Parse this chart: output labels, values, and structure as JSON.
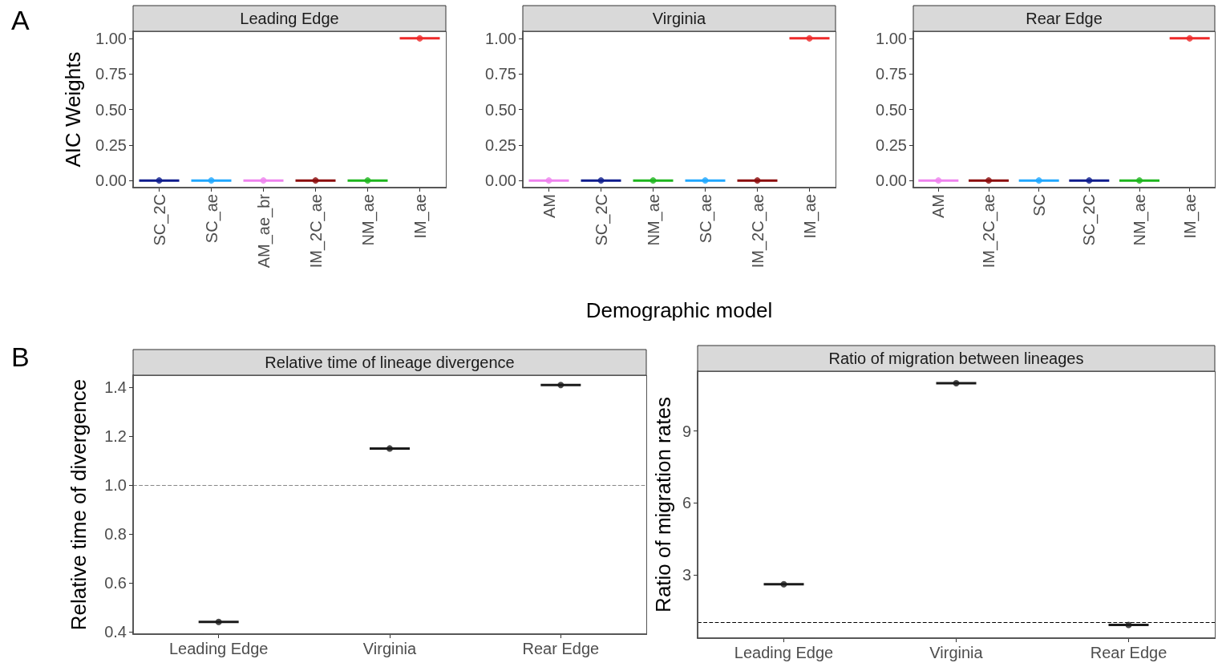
{
  "chart_data": [
    {
      "type": "box",
      "title": "Leading Edge",
      "ylabel": "AIC Weights",
      "annotations": [
        "A"
      ],
      "marker": "circle",
      "categories": [
        "SC_2C",
        "SC_ae",
        "AM_ae_br",
        "IM_2C_ae",
        "NM_ae",
        "IM_ae"
      ],
      "colors": [
        "#0d1b8c",
        "#1ea7ff",
        "#ee82ee",
        "#8b0a0a",
        "#1db51d",
        "#ee2a2a"
      ],
      "boxes": [
        {
          "low": 0,
          "q1": 0,
          "median": 0,
          "q3": 0,
          "high": 0,
          "mean": 0
        },
        {
          "low": 0,
          "q1": 0,
          "median": 0,
          "q3": 0,
          "high": 0,
          "mean": 0
        },
        {
          "low": 0,
          "q1": 0,
          "median": 0,
          "q3": 0,
          "high": 0,
          "mean": 0
        },
        {
          "low": 0,
          "q1": 0,
          "median": 0,
          "q3": 0,
          "high": 0,
          "mean": 0
        },
        {
          "low": 0,
          "q1": 0,
          "median": 0,
          "q3": 0,
          "high": 0,
          "mean": 0
        },
        {
          "low": 1,
          "q1": 1,
          "median": 1,
          "q3": 1,
          "high": 1,
          "mean": 1
        }
      ],
      "ylim": [
        -0.05,
        1.05
      ],
      "yticks": [
        {
          "value": 0,
          "label": "0.00"
        },
        0.25,
        {
          "value": 0.5,
          "label": "0.50"
        },
        0.75,
        {
          "value": 1,
          "label": "1.00"
        }
      ]
    },
    {
      "type": "box",
      "title": "Virginia",
      "xlabel": "Demographic model",
      "marker": "circle",
      "categories": [
        "AM",
        "SC_2C",
        "NM_ae",
        "SC_ae",
        "IM_2C_ae",
        "IM_ae"
      ],
      "colors": [
        "#ee82ee",
        "#0d1b8c",
        "#1db51d",
        "#1ea7ff",
        "#8b0a0a",
        "#ee2a2a"
      ],
      "boxes": [
        {
          "low": 0,
          "q1": 0,
          "median": 0,
          "q3": 0,
          "high": 0,
          "mean": 0
        },
        {
          "low": 0,
          "q1": 0,
          "median": 0,
          "q3": 0,
          "high": 0,
          "mean": 0
        },
        {
          "low": 0,
          "q1": 0,
          "median": 0,
          "q3": 0,
          "high": 0,
          "mean": 0
        },
        {
          "low": 0,
          "q1": 0,
          "median": 0,
          "q3": 0,
          "high": 0,
          "mean": 0
        },
        {
          "low": 0,
          "q1": 0,
          "median": 0,
          "q3": 0,
          "high": 0,
          "mean": 0
        },
        {
          "low": 1,
          "q1": 1,
          "median": 1,
          "q3": 1,
          "high": 1,
          "mean": 1
        }
      ],
      "ylim": [
        -0.05,
        1.05
      ],
      "yticks": [
        {
          "value": 0,
          "label": "0.00"
        },
        0.25,
        {
          "value": 0.5,
          "label": "0.50"
        },
        0.75,
        {
          "value": 1,
          "label": "1.00"
        }
      ]
    },
    {
      "type": "box",
      "title": "Rear Edge",
      "marker": "circle",
      "categories": [
        "AM",
        "IM_2C_ae",
        "SC",
        "SC_2C",
        "NM_ae",
        "IM_ae"
      ],
      "colors": [
        "#ee82ee",
        "#8b0a0a",
        "#1ea7ff",
        "#0d1b8c",
        "#1db51d",
        "#ee2a2a"
      ],
      "boxes": [
        {
          "low": 0,
          "q1": 0,
          "median": 0,
          "q3": 0,
          "high": 0,
          "mean": 0
        },
        {
          "low": 0,
          "q1": 0,
          "median": 0,
          "q3": 0,
          "high": 0,
          "mean": 0
        },
        {
          "low": 0,
          "q1": 0,
          "median": 0,
          "q3": 0,
          "high": 0,
          "mean": 0
        },
        {
          "low": 0,
          "q1": 0,
          "median": 0,
          "q3": 0,
          "high": 0,
          "mean": 0
        },
        {
          "low": 0,
          "q1": 0,
          "median": 0,
          "q3": 0,
          "high": 0,
          "mean": 0
        },
        {
          "low": 1,
          "q1": 1,
          "median": 1,
          "q3": 1,
          "high": 1,
          "mean": 1
        }
      ],
      "ylim": [
        -0.05,
        1.05
      ],
      "yticks": [
        {
          "value": 0,
          "label": "0.00"
        },
        0.25,
        {
          "value": 0.5,
          "label": "0.50"
        },
        0.75,
        {
          "value": 1,
          "label": "1.00"
        }
      ]
    },
    {
      "type": "box",
      "title": "Relative time of lineage divergence",
      "ylabel": "Relative time of divergence",
      "annotations": [
        "B"
      ],
      "marker": "circle",
      "categories": [
        "Leading Edge",
        "Virginia",
        "Rear Edge"
      ],
      "colors": [
        "#1a1a1a",
        "#1a1a1a",
        "#1a1a1a"
      ],
      "boxes": [
        {
          "low": 0.44,
          "q1": 0.44,
          "median": 0.44,
          "q3": 0.44,
          "high": 0.44,
          "mean": 0.44
        },
        {
          "low": 1.15,
          "q1": 1.15,
          "median": 1.15,
          "q3": 1.15,
          "high": 1.15,
          "mean": 1.15
        },
        {
          "low": 1.41,
          "q1": 1.41,
          "median": 1.41,
          "q3": 1.41,
          "high": 1.41,
          "mean": 1.41
        }
      ],
      "ylim": [
        0.39,
        1.45
      ],
      "yticks": [
        0.4,
        0.6,
        0.8,
        {
          "value": 1,
          "label": "1.0"
        },
        1.2,
        1.4
      ],
      "ref_lines": [
        {
          "axis": "y",
          "value": 1,
          "color": "#888888",
          "line_style": "dashed"
        }
      ]
    },
    {
      "type": "box",
      "title": "Ratio of migration between lineages",
      "ylabel": "Ratio of migration rates",
      "marker": "circle",
      "categories": [
        "Leading Edge",
        "Virginia",
        "Rear Edge"
      ],
      "colors": [
        "#1a1a1a",
        "#1a1a1a",
        "#1a1a1a"
      ],
      "boxes": [
        {
          "low": 2.6,
          "q1": 2.6,
          "median": 2.6,
          "q3": 2.6,
          "high": 2.6,
          "mean": 2.6
        },
        {
          "low": 11.0,
          "q1": 11.0,
          "median": 11.0,
          "q3": 11.0,
          "high": 11.0,
          "mean": 11.0
        },
        {
          "low": 0.9,
          "q1": 0.9,
          "median": 0.9,
          "q3": 0.9,
          "high": 0.9,
          "mean": 0.9
        }
      ],
      "ylim": [
        0.35,
        11.5
      ],
      "yticks": [
        3,
        6,
        9
      ],
      "ref_lines": [
        {
          "axis": "y",
          "value": 1,
          "color": "#000000",
          "line_style": "dashed"
        }
      ]
    }
  ]
}
